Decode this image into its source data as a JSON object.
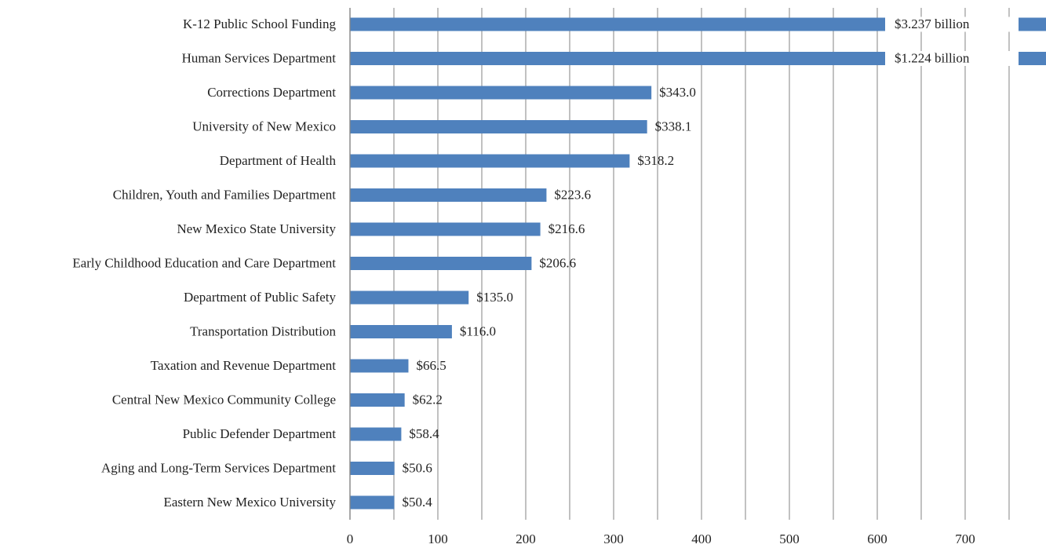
{
  "chart_data": {
    "type": "bar",
    "orientation": "horizontal",
    "categories": [
      "K-12 Public School Funding",
      "Human Services Department",
      "Corrections Department",
      "University of New Mexico",
      "Department of Health",
      "Children, Youth and Families Department",
      "New Mexico State University",
      "Early Childhood Education and Care Department",
      "Department of Public Safety",
      "Transportation Distribution",
      "Taxation and Revenue Department",
      "Central New Mexico Community College",
      "Public Defender Department",
      "Aging and Long-Term Services Department",
      "Eastern New Mexico University"
    ],
    "values": [
      3237,
      1224,
      343.0,
      338.1,
      318.2,
      223.6,
      216.6,
      206.6,
      135.0,
      116.0,
      66.5,
      62.2,
      58.4,
      50.6,
      50.4
    ],
    "value_labels": [
      "$3.237 billion",
      "$1.224 billion",
      "$343.0",
      "$338.1",
      "$318.2",
      "$223.6",
      "$216.6",
      "$206.6",
      "$135.0",
      "$116.0",
      "$66.5",
      "$62.2",
      "$58.4",
      "$50.6",
      "$50.4"
    ],
    "color": "#4f81bd",
    "xlim": [
      0,
      792
    ],
    "xticks": [
      0,
      100,
      200,
      300,
      400,
      500,
      600,
      700
    ],
    "minor_xticks": [
      50,
      150,
      250,
      350,
      450,
      550,
      650,
      750
    ],
    "grid": true
  }
}
